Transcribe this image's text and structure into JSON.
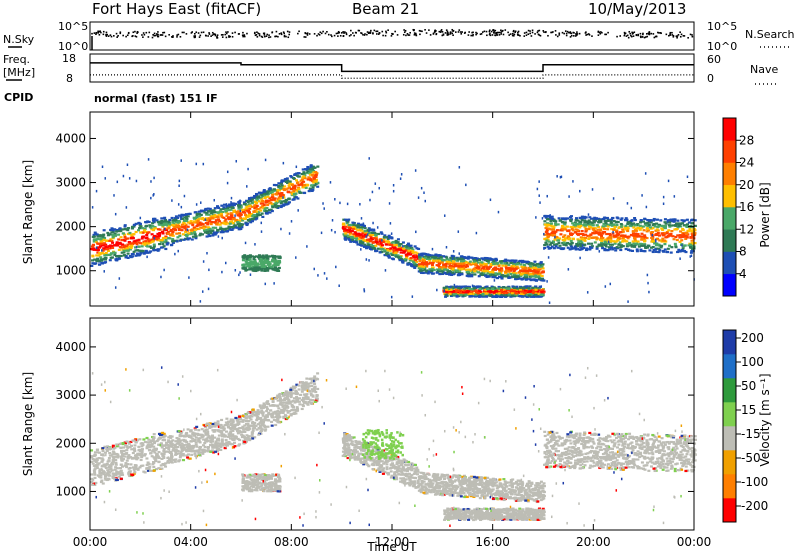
{
  "header": {
    "radar": "Fort Hays East (fitACF)",
    "beam": "Beam 21",
    "date": "10/May/2013"
  },
  "side_labels": {
    "nsky": "N.Sky",
    "nsearch": "N.Search",
    "freq_line1": "Freq.",
    "freq_line2": "[MHz]",
    "cpid": "CPID",
    "nave": "Nave",
    "cpid_text": "normal (fast) 151 IF"
  },
  "noise_panel": {
    "left_ticks": [
      "10^5",
      "10^0"
    ],
    "right_ticks": [
      "10^5",
      "10^0"
    ]
  },
  "freq_panel": {
    "left_ticks": [
      "18",
      "8"
    ],
    "right_ticks": [
      "60",
      "0"
    ]
  },
  "colors": {
    "power_scale": [
      "#0000ff",
      "#1e4fb4",
      "#2f7a55",
      "#4aa868",
      "#ffbf00",
      "#ff7f00",
      "#ff4000",
      "#ff0000"
    ],
    "velocity_scale": [
      "#1e3ca8",
      "#1f6fc8",
      "#2e9a3c",
      "#7fd04f",
      "#bdbdb5",
      "#f0a000",
      "#ff7f00",
      "#ff0000"
    ]
  },
  "chart_data": [
    {
      "type": "heatmap",
      "panel": "power",
      "ylabel": "Slant Range [km]",
      "y_ticks": [
        "1000",
        "2000",
        "3000",
        "4000"
      ],
      "ylim": [
        200,
        4600
      ],
      "x_ticks": [
        "00:00",
        "04:00",
        "08:00",
        "12:00",
        "16:00",
        "20:00",
        "00:00"
      ],
      "xlim": [
        0,
        24
      ],
      "colorbar": {
        "label": "Power [dB]",
        "tick_labels": [
          "4",
          "8",
          "12",
          "16",
          "20",
          "24",
          "28"
        ],
        "range": [
          0,
          32
        ]
      }
    },
    {
      "type": "heatmap",
      "panel": "velocity",
      "ylabel": "Slant Range [km]",
      "xlabel": "Time UT",
      "y_ticks": [
        "1000",
        "2000",
        "3000",
        "4000"
      ],
      "ylim": [
        200,
        4600
      ],
      "x_ticks": [
        "00:00",
        "04:00",
        "08:00",
        "12:00",
        "16:00",
        "20:00",
        "00:00"
      ],
      "xlim": [
        0,
        24
      ],
      "colorbar": {
        "label": "Velocity [m s⁻¹]",
        "tick_labels": [
          "200",
          "100",
          "50",
          "15",
          "-15",
          "-50",
          "-100",
          "-200"
        ]
      }
    }
  ]
}
